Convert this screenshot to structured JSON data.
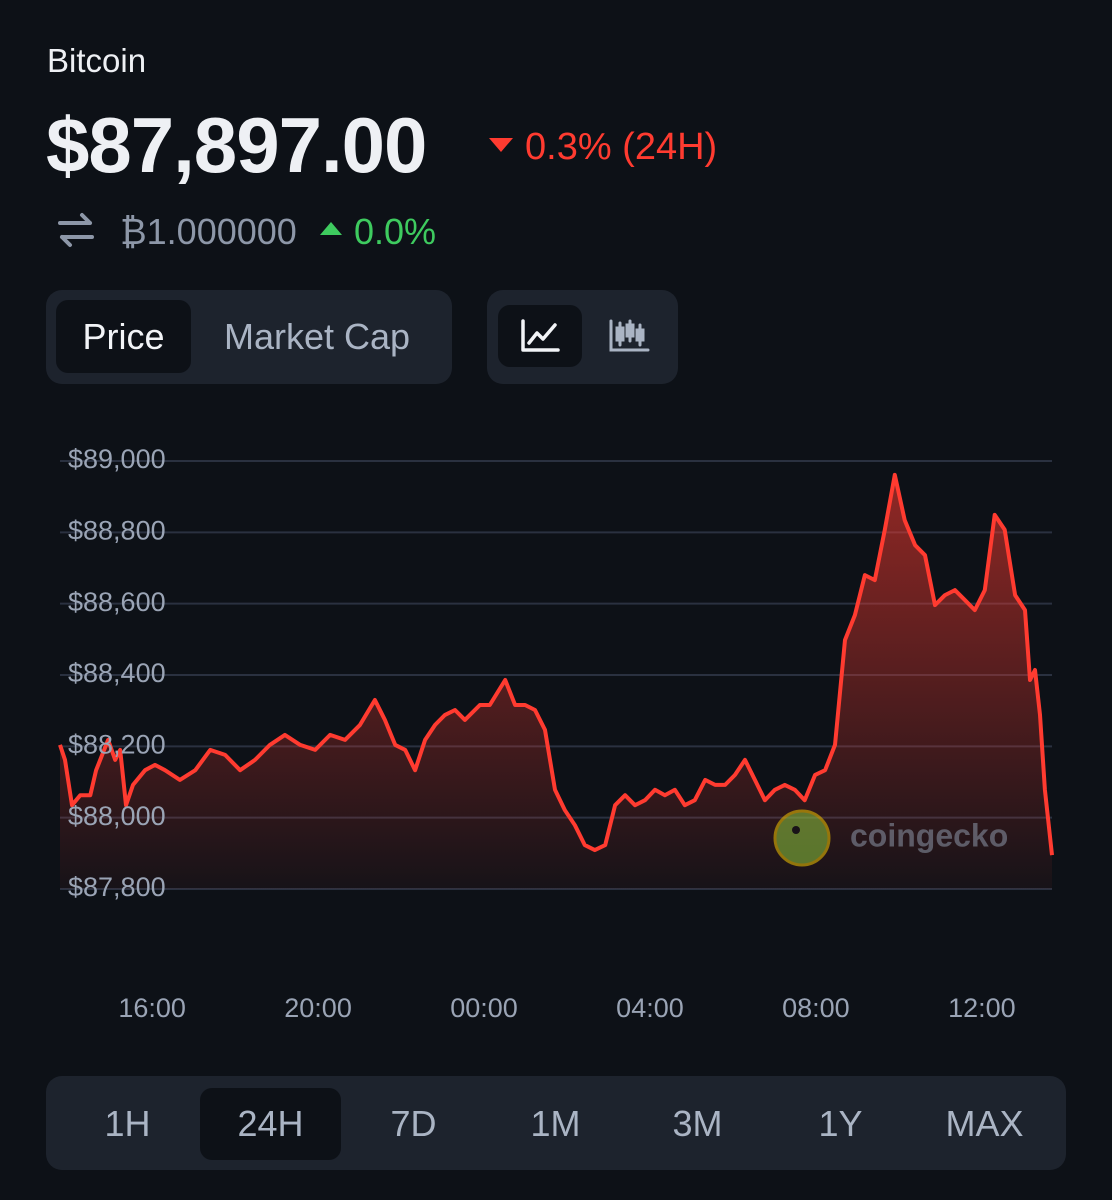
{
  "header": {
    "name": "Bitcoin",
    "price": "$87,897.00",
    "change_24h": "0.3% (24H)",
    "btc_price": "₿1.000000",
    "btc_change": "0.0%"
  },
  "chart_tabs": [
    "Price",
    "Market Cap"
  ],
  "chart_data": {
    "type": "line",
    "color": "#ff3b30",
    "watermark": "coingecko",
    "grid": true,
    "x": [
      13.78,
      13.9,
      14.07,
      14.27,
      14.51,
      14.65,
      14.75,
      14.94,
      15.11,
      15.23,
      15.37,
      15.54,
      15.83,
      16.07,
      16.31,
      16.67,
      17.04,
      17.4,
      17.76,
      18.12,
      18.48,
      18.84,
      19.2,
      19.57,
      19.93,
      20.29,
      20.65,
      21.01,
      21.37,
      21.61,
      21.86,
      22.1,
      22.34,
      22.58,
      22.82,
      23.06,
      23.3,
      23.54,
      23.9,
      24.14,
      24.51,
      24.75,
      24.99,
      25.23,
      25.47,
      25.71,
      25.95,
      26.19,
      26.43,
      26.67,
      26.92,
      27.16,
      27.4,
      27.64,
      27.88,
      28.12,
      28.36,
      28.6,
      28.84,
      29.08,
      29.33,
      29.57,
      29.81,
      30.05,
      30.29,
      30.53,
      30.77,
      31.01,
      31.25,
      31.49,
      31.73,
      31.98,
      32.22,
      32.46,
      32.7,
      32.94,
      33.18,
      33.42,
      33.66,
      33.9,
      34.14,
      34.39,
      34.63,
      34.87,
      35.11,
      35.35,
      35.59,
      35.83,
      36.07,
      36.31,
      36.55,
      36.8,
      37.04,
      37.16,
      37.28,
      37.4,
      37.52,
      37.69
    ],
    "values": [
      88204,
      88162,
      88035,
      88063,
      88063,
      88133,
      88162,
      88218,
      88162,
      88190,
      88035,
      88092,
      88133,
      88148,
      88133,
      88106,
      88133,
      88190,
      88176,
      88133,
      88162,
      88204,
      88232,
      88204,
      88190,
      88232,
      88218,
      88260,
      88330,
      88274,
      88204,
      88190,
      88133,
      88218,
      88260,
      88288,
      88302,
      88274,
      88316,
      88316,
      88386,
      88316,
      88316,
      88302,
      88246,
      88078,
      88021,
      87979,
      87923,
      87909,
      87923,
      88035,
      88063,
      88035,
      88049,
      88078,
      88063,
      88078,
      88035,
      88049,
      88106,
      88092,
      88092,
      88120,
      88162,
      88106,
      88049,
      88078,
      88092,
      88078,
      88049,
      88120,
      88133,
      88204,
      88498,
      88568,
      88680,
      88666,
      88807,
      88961,
      88834,
      88764,
      88736,
      88596,
      88624,
      88638,
      88610,
      88582,
      88638,
      88849,
      88807,
      88624,
      88582,
      88386,
      88414,
      88288,
      88078,
      87895
    ],
    "xlim": [
      13.78,
      37.69
    ],
    "xticks": [
      {
        "value": 16,
        "label": "16:00"
      },
      {
        "value": 20,
        "label": "20:00"
      },
      {
        "value": 24,
        "label": "00:00"
      },
      {
        "value": 28,
        "label": "04:00"
      },
      {
        "value": 32,
        "label": "08:00"
      },
      {
        "value": 36,
        "label": "12:00"
      }
    ],
    "ylim": [
      87800,
      89000
    ],
    "yticks": [
      {
        "value": 87800,
        "label": "$87,800"
      },
      {
        "value": 88000,
        "label": "$88,000"
      },
      {
        "value": 88200,
        "label": "$88,200"
      },
      {
        "value": 88400,
        "label": "$88,400"
      },
      {
        "value": 88600,
        "label": "$88,600"
      },
      {
        "value": 88800,
        "label": "$88,800"
      },
      {
        "value": 89000,
        "label": "$89,000"
      }
    ]
  },
  "time_ranges": [
    "1H",
    "24H",
    "7D",
    "1M",
    "3M",
    "1Y",
    "MAX"
  ]
}
